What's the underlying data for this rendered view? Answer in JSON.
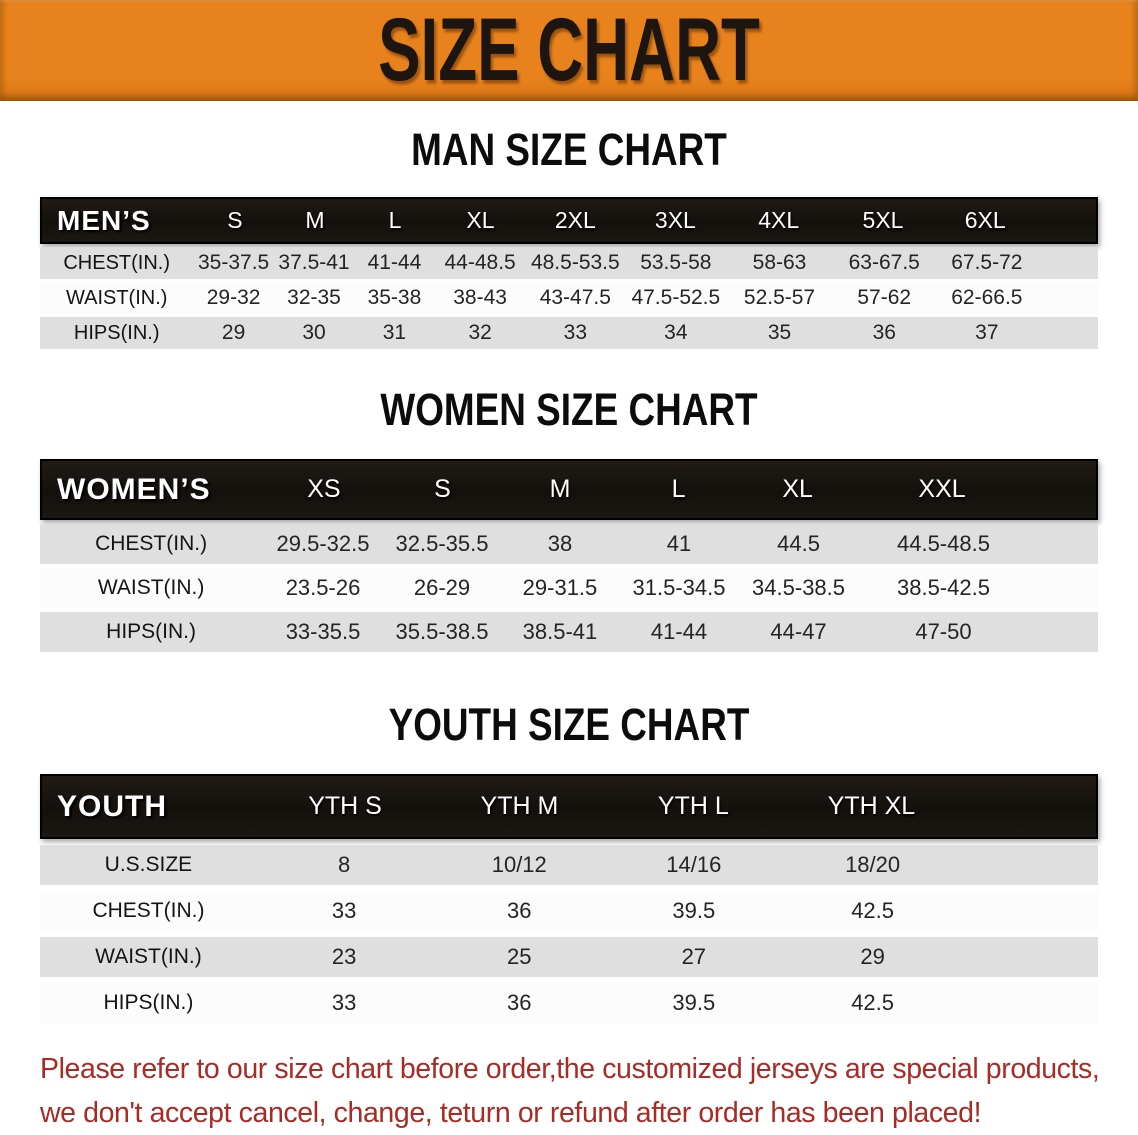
{
  "banner": {
    "title": "SIZE CHART"
  },
  "colors": {
    "banner_bg": "#e8821c",
    "header_bar_bg": "#16120d",
    "row_shade": "#dfdfdf",
    "notice_red": "#a82b25"
  },
  "sections": [
    {
      "heading": "MAN SIZE CHART",
      "table": {
        "header_label": "MEN’S",
        "columns": [
          "S",
          "M",
          "L",
          "XL",
          "2XL",
          "3XL",
          "4XL",
          "5XL",
          "6XL"
        ],
        "rows": [
          {
            "label": "CHEST(IN.)",
            "values": [
              "35-37.5",
              "37.5-41",
              "41-44",
              "44-48.5",
              "48.5-53.5",
              "53.5-58",
              "58-63",
              "63-67.5",
              "67.5-72"
            ]
          },
          {
            "label": "WAIST(IN.)",
            "values": [
              "29-32",
              "32-35",
              "35-38",
              "38-43",
              "43-47.5",
              "47.5-52.5",
              "52.5-57",
              "57-62",
              "62-66.5"
            ]
          },
          {
            "label": "HIPS(IN.)",
            "values": [
              "29",
              "30",
              "31",
              "32",
              "33",
              "34",
              "35",
              "36",
              "37"
            ]
          }
        ]
      }
    },
    {
      "heading": "WOMEN SIZE CHART",
      "table": {
        "header_label": "WOMEN’S",
        "columns": [
          "XS",
          "S",
          "M",
          "L",
          "XL",
          "XXL"
        ],
        "rows": [
          {
            "label": "CHEST(IN.)",
            "values": [
              "29.5-32.5",
              "32.5-35.5",
              "38",
              "41",
              "44.5",
              "44.5-48.5"
            ]
          },
          {
            "label": "WAIST(IN.)",
            "values": [
              "23.5-26",
              "26-29",
              "29-31.5",
              "31.5-34.5",
              "34.5-38.5",
              "38.5-42.5"
            ]
          },
          {
            "label": "HIPS(IN.)",
            "values": [
              "33-35.5",
              "35.5-38.5",
              "38.5-41",
              "41-44",
              "44-47",
              "47-50"
            ]
          }
        ]
      }
    },
    {
      "heading": "YOUTH SIZE CHART",
      "table": {
        "header_label": "YOUTH",
        "columns": [
          "YTH S",
          "YTH M",
          "YTH L",
          "YTH XL"
        ],
        "rows": [
          {
            "label": "U.S.SIZE",
            "values": [
              "8",
              "10/12",
              "14/16",
              "18/20"
            ]
          },
          {
            "label": "CHEST(IN.)",
            "values": [
              "33",
              "36",
              "39.5",
              "42.5"
            ]
          },
          {
            "label": "WAIST(IN.)",
            "values": [
              "23",
              "25",
              "27",
              "29"
            ]
          },
          {
            "label": "HIPS(IN.)",
            "values": [
              "33",
              "36",
              "39.5",
              "42.5"
            ]
          }
        ]
      }
    }
  ],
  "footer": {
    "line1": "Please refer to our size chart before order,the customized jerseys are special products,",
    "line2": "we don't accept cancel, change, teturn or refund after order has been placed!"
  }
}
